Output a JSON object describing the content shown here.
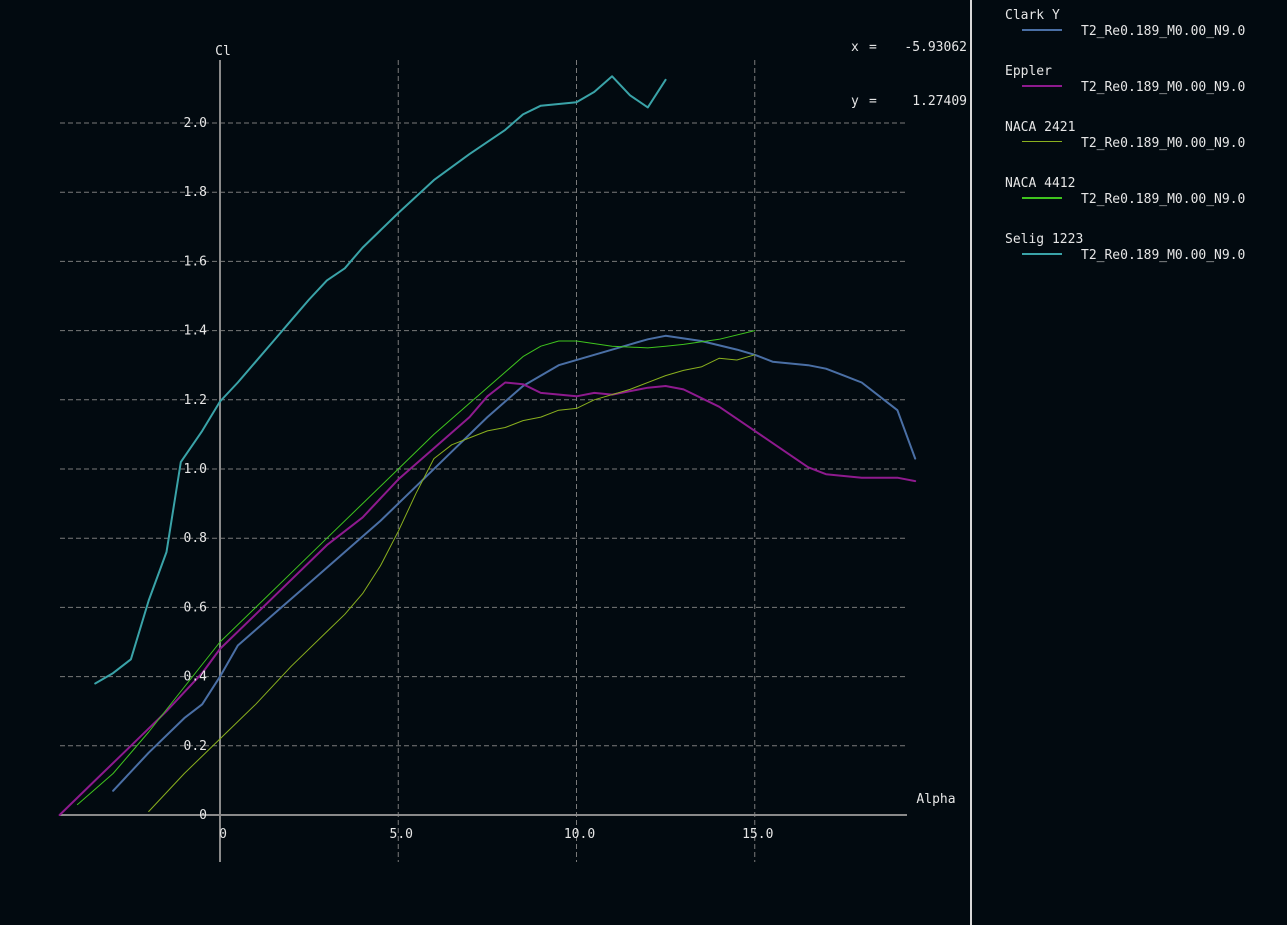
{
  "cursor": {
    "x_label": "x",
    "x_value": "-5.93062",
    "y_label": "y",
    "y_value": "1.27409"
  },
  "legend": [
    {
      "name": "Clark Y",
      "polar": "T2_Re0.189_M0.00_N9.0",
      "color": "#4a6fa5"
    },
    {
      "name": "Eppler",
      "polar": "T2_Re0.189_M0.00_N9.0",
      "color": "#8e1a8e"
    },
    {
      "name": "NACA 2421",
      "polar": "T2_Re0.189_M0.00_N9.0",
      "color": "#8ab01e"
    },
    {
      "name": "NACA 4412",
      "polar": "T2_Re0.189_M0.00_N9.0",
      "color": "#3fc41e"
    },
    {
      "name": "Selig 1223",
      "polar": "T2_Re0.189_M0.00_N9.0",
      "color": "#3aa3a8"
    }
  ],
  "chart_data": {
    "type": "line",
    "xlabel": "Alpha",
    "ylabel": "Cl",
    "xlim": [
      -4.5,
      19.3
    ],
    "ylim": [
      0,
      2.18
    ],
    "x_ticks": [
      0,
      5,
      10,
      15
    ],
    "x_tick_labels": [
      "0",
      "5.0",
      "10.0",
      "15.0"
    ],
    "y_ticks": [
      0,
      0.2,
      0.4,
      0.6,
      0.8,
      1.0,
      1.2,
      1.4,
      1.6,
      1.8,
      2.0
    ],
    "y_tick_labels": [
      "0",
      "0.2",
      "0.4",
      "0.6",
      "0.8",
      "1.0",
      "1.2",
      "1.4",
      "1.6",
      "1.8",
      "2.0"
    ],
    "grid": true,
    "series": [
      {
        "name": "Clark Y",
        "color": "#4a6fa5",
        "width": 2,
        "points": [
          [
            -3.0,
            0.07
          ],
          [
            -2.0,
            0.18
          ],
          [
            -1.0,
            0.28
          ],
          [
            -0.5,
            0.32
          ],
          [
            0,
            0.4
          ],
          [
            0.5,
            0.49
          ],
          [
            1.5,
            0.58
          ],
          [
            2.5,
            0.67
          ],
          [
            3.5,
            0.76
          ],
          [
            4.5,
            0.85
          ],
          [
            5.5,
            0.95
          ],
          [
            6.5,
            1.05
          ],
          [
            7.5,
            1.15
          ],
          [
            8.5,
            1.24
          ],
          [
            9.5,
            1.3
          ],
          [
            10.5,
            1.33
          ],
          [
            11.5,
            1.36
          ],
          [
            12.0,
            1.375
          ],
          [
            12.5,
            1.385
          ],
          [
            13.5,
            1.37
          ],
          [
            14.5,
            1.345
          ],
          [
            15.0,
            1.33
          ],
          [
            15.5,
            1.31
          ],
          [
            16.5,
            1.3
          ],
          [
            17.0,
            1.29
          ],
          [
            17.5,
            1.27
          ],
          [
            18.0,
            1.25
          ],
          [
            18.5,
            1.21
          ],
          [
            19.0,
            1.17
          ],
          [
            19.5,
            1.03
          ]
        ]
      },
      {
        "name": "Eppler",
        "color": "#8e1a8e",
        "width": 2,
        "points": [
          [
            -4.5,
            0.0
          ],
          [
            -3.5,
            0.1
          ],
          [
            -2.5,
            0.2
          ],
          [
            -1.5,
            0.3
          ],
          [
            -0.5,
            0.41
          ],
          [
            0,
            0.48
          ],
          [
            1.0,
            0.58
          ],
          [
            2.0,
            0.68
          ],
          [
            3.0,
            0.78
          ],
          [
            4.0,
            0.86
          ],
          [
            5.0,
            0.97
          ],
          [
            6.0,
            1.06
          ],
          [
            7.0,
            1.15
          ],
          [
            7.5,
            1.21
          ],
          [
            8.0,
            1.25
          ],
          [
            8.5,
            1.245
          ],
          [
            9.0,
            1.22
          ],
          [
            10.0,
            1.21
          ],
          [
            10.5,
            1.22
          ],
          [
            11.0,
            1.215
          ],
          [
            12.0,
            1.235
          ],
          [
            12.5,
            1.24
          ],
          [
            13.0,
            1.23
          ],
          [
            14.0,
            1.18
          ],
          [
            15.0,
            1.11
          ],
          [
            16.0,
            1.04
          ],
          [
            16.5,
            1.005
          ],
          [
            17.0,
            0.985
          ],
          [
            18.0,
            0.975
          ],
          [
            19.0,
            0.975
          ],
          [
            19.5,
            0.965
          ]
        ]
      },
      {
        "name": "NACA 2421",
        "color": "#8ab01e",
        "width": 1,
        "points": [
          [
            -2.0,
            0.01
          ],
          [
            -1.0,
            0.12
          ],
          [
            0,
            0.22
          ],
          [
            1.0,
            0.32
          ],
          [
            2.0,
            0.43
          ],
          [
            3.0,
            0.53
          ],
          [
            3.5,
            0.58
          ],
          [
            4.0,
            0.64
          ],
          [
            4.5,
            0.72
          ],
          [
            5.0,
            0.82
          ],
          [
            5.5,
            0.93
          ],
          [
            6.0,
            1.03
          ],
          [
            6.5,
            1.07
          ],
          [
            7.0,
            1.09
          ],
          [
            7.5,
            1.11
          ],
          [
            8.0,
            1.12
          ],
          [
            8.5,
            1.14
          ],
          [
            9.0,
            1.15
          ],
          [
            9.5,
            1.17
          ],
          [
            10.0,
            1.175
          ],
          [
            10.5,
            1.2
          ],
          [
            11.5,
            1.23
          ],
          [
            12.5,
            1.27
          ],
          [
            13.0,
            1.285
          ],
          [
            13.5,
            1.295
          ],
          [
            14.0,
            1.32
          ],
          [
            14.5,
            1.315
          ],
          [
            15.0,
            1.33
          ]
        ]
      },
      {
        "name": "NACA 4412",
        "color": "#3fc41e",
        "width": 1,
        "points": [
          [
            -4.0,
            0.03
          ],
          [
            -3.0,
            0.12
          ],
          [
            -2.0,
            0.24
          ],
          [
            -1.0,
            0.37
          ],
          [
            0,
            0.5
          ],
          [
            1.0,
            0.6
          ],
          [
            2.0,
            0.7
          ],
          [
            3.0,
            0.8
          ],
          [
            4.0,
            0.9
          ],
          [
            5.0,
            1.0
          ],
          [
            6.0,
            1.1
          ],
          [
            7.0,
            1.19
          ],
          [
            8.0,
            1.28
          ],
          [
            8.5,
            1.325
          ],
          [
            9.0,
            1.355
          ],
          [
            9.5,
            1.37
          ],
          [
            10.0,
            1.37
          ],
          [
            11.0,
            1.355
          ],
          [
            12.0,
            1.35
          ],
          [
            12.5,
            1.355
          ],
          [
            13.0,
            1.36
          ],
          [
            14.0,
            1.375
          ],
          [
            15.0,
            1.4
          ]
        ]
      },
      {
        "name": "Selig 1223",
        "color": "#3aa3a8",
        "width": 2,
        "points": [
          [
            -3.5,
            0.38
          ],
          [
            -3.0,
            0.41
          ],
          [
            -2.5,
            0.45
          ],
          [
            -2.0,
            0.62
          ],
          [
            -1.5,
            0.76
          ],
          [
            -1.1,
            1.02
          ],
          [
            -0.5,
            1.11
          ],
          [
            0,
            1.195
          ],
          [
            0.5,
            1.25
          ],
          [
            1.0,
            1.31
          ],
          [
            1.5,
            1.37
          ],
          [
            2.0,
            1.43
          ],
          [
            2.5,
            1.49
          ],
          [
            3.0,
            1.545
          ],
          [
            3.5,
            1.58
          ],
          [
            4.0,
            1.64
          ],
          [
            5.0,
            1.74
          ],
          [
            6.0,
            1.835
          ],
          [
            7.0,
            1.91
          ],
          [
            8.0,
            1.98
          ],
          [
            8.5,
            2.025
          ],
          [
            9.0,
            2.05
          ],
          [
            10.0,
            2.06
          ],
          [
            10.5,
            2.09
          ],
          [
            11.0,
            2.135
          ],
          [
            11.5,
            2.08
          ],
          [
            12.0,
            2.045
          ],
          [
            12.5,
            2.125
          ]
        ]
      }
    ]
  }
}
